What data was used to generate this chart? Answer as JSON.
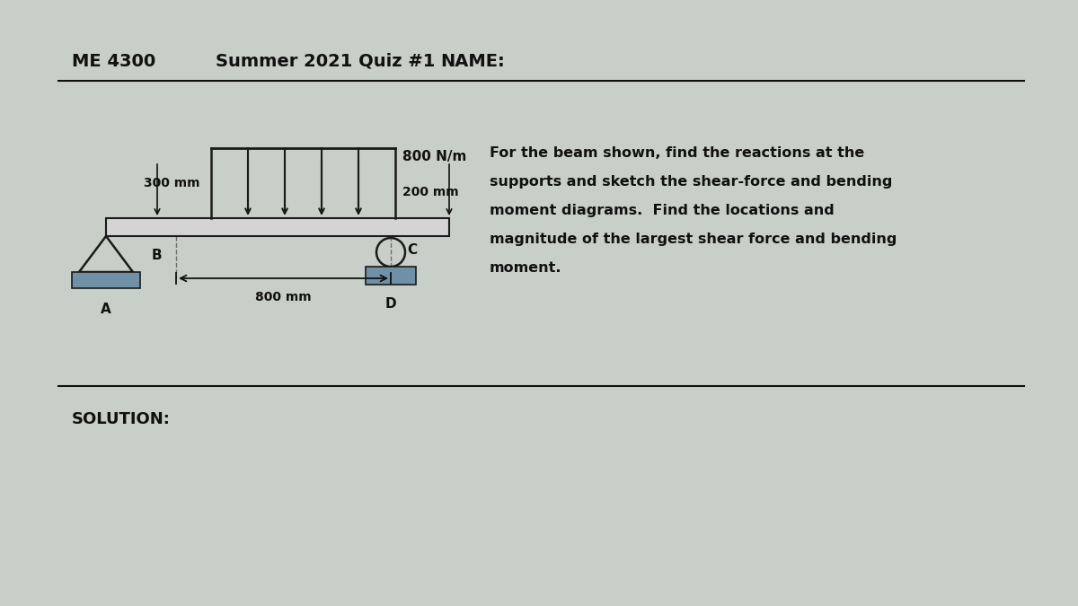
{
  "bg_color": "#c8cfc8",
  "header_left": "ME 4300",
  "header_center": "Summer 2021 Quiz #1",
  "header_right": "NAME:",
  "solution_label": "SOLUTION:",
  "problem_text": [
    "For the beam shown, find the reactions at the",
    "supports and sketch the shear-force and bending",
    "moment diagrams.  Find the locations and",
    "magnitude of the largest shear force and bending",
    "moment."
  ],
  "load_label": "800 N/m",
  "dim_left": "300 mm",
  "dim_right": "200 mm",
  "dim_bottom": "800 mm",
  "label_A": "A",
  "label_B": "B",
  "label_C": "C",
  "label_D": "D",
  "beam_color": "#1a1a1a",
  "beam_fill": "#d4d4d4",
  "support_fill": "#7090a8",
  "text_color": "#111111"
}
